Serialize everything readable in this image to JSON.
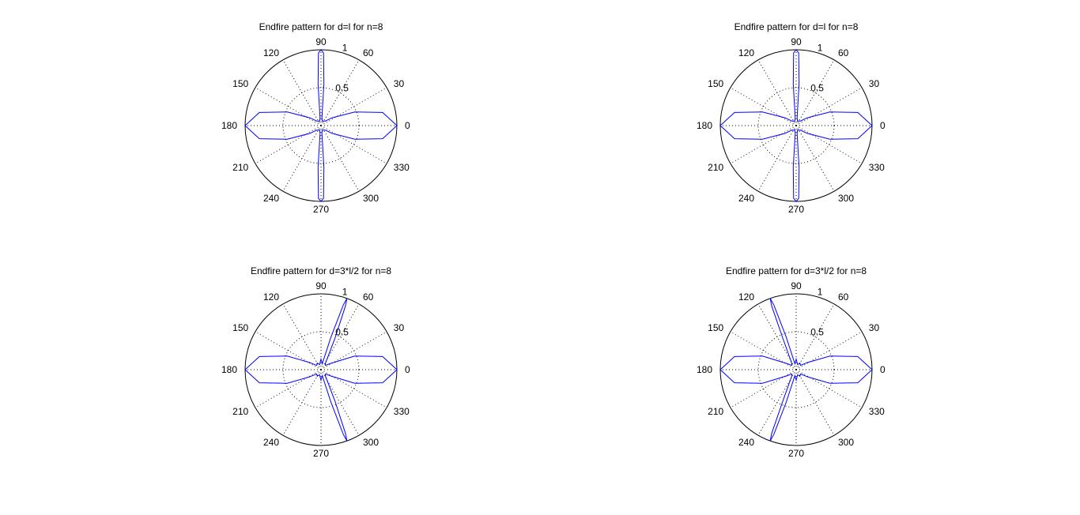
{
  "chart_data": [
    {
      "type": "polar",
      "title": "Endfire pattern for d=l for n=8",
      "theta_ticks": [
        "0",
        "30",
        "60",
        "90",
        "120",
        "150",
        "180",
        "210",
        "240",
        "270",
        "300",
        "330"
      ],
      "r_ticks": [
        "0.5",
        "1"
      ],
      "rlim": [
        0,
        1
      ],
      "grid": true,
      "series": [
        {
          "points": [
            [
              0,
              1.0
            ],
            [
              12,
              0.83
            ],
            [
              22,
              0.48
            ],
            [
              35,
              0.18
            ],
            [
              47,
              0.08
            ],
            [
              60,
              0.07
            ],
            [
              72,
              0.06
            ],
            [
              83,
              0.1
            ],
            [
              86,
              0.55
            ],
            [
              88,
              0.96
            ],
            [
              90,
              1.0
            ],
            [
              92,
              0.96
            ],
            [
              94,
              0.55
            ],
            [
              97,
              0.1
            ],
            [
              108,
              0.06
            ],
            [
              120,
              0.07
            ],
            [
              133,
              0.08
            ],
            [
              145,
              0.18
            ],
            [
              158,
              0.48
            ],
            [
              168,
              0.83
            ],
            [
              180,
              1.0
            ],
            [
              192,
              0.83
            ],
            [
              202,
              0.48
            ],
            [
              215,
              0.18
            ],
            [
              227,
              0.08
            ],
            [
              240,
              0.07
            ],
            [
              252,
              0.06
            ],
            [
              263,
              0.1
            ],
            [
              266,
              0.55
            ],
            [
              268,
              0.96
            ],
            [
              270,
              1.0
            ],
            [
              272,
              0.96
            ],
            [
              274,
              0.55
            ],
            [
              277,
              0.1
            ],
            [
              288,
              0.06
            ],
            [
              300,
              0.07
            ],
            [
              313,
              0.08
            ],
            [
              325,
              0.18
            ],
            [
              338,
              0.48
            ],
            [
              348,
              0.83
            ],
            [
              360,
              1.0
            ]
          ]
        }
      ]
    },
    {
      "type": "polar",
      "title": "Endfire pattern for d=l for n=8",
      "theta_ticks": [
        "0",
        "30",
        "60",
        "90",
        "120",
        "150",
        "180",
        "210",
        "240",
        "270",
        "300",
        "330"
      ],
      "r_ticks": [
        "0.5",
        "1"
      ],
      "rlim": [
        0,
        1
      ],
      "grid": true,
      "series": [
        {
          "points": [
            [
              0,
              1.0
            ],
            [
              12,
              0.83
            ],
            [
              22,
              0.48
            ],
            [
              35,
              0.18
            ],
            [
              47,
              0.08
            ],
            [
              60,
              0.07
            ],
            [
              72,
              0.06
            ],
            [
              83,
              0.1
            ],
            [
              86,
              0.55
            ],
            [
              88,
              0.96
            ],
            [
              90,
              1.0
            ],
            [
              92,
              0.96
            ],
            [
              94,
              0.55
            ],
            [
              97,
              0.1
            ],
            [
              108,
              0.06
            ],
            [
              120,
              0.07
            ],
            [
              133,
              0.08
            ],
            [
              145,
              0.18
            ],
            [
              158,
              0.48
            ],
            [
              168,
              0.83
            ],
            [
              180,
              1.0
            ],
            [
              192,
              0.83
            ],
            [
              202,
              0.48
            ],
            [
              215,
              0.18
            ],
            [
              227,
              0.08
            ],
            [
              240,
              0.07
            ],
            [
              252,
              0.06
            ],
            [
              263,
              0.1
            ],
            [
              266,
              0.55
            ],
            [
              268,
              0.96
            ],
            [
              270,
              1.0
            ],
            [
              272,
              0.96
            ],
            [
              274,
              0.55
            ],
            [
              277,
              0.1
            ],
            [
              288,
              0.06
            ],
            [
              300,
              0.07
            ],
            [
              313,
              0.08
            ],
            [
              325,
              0.18
            ],
            [
              338,
              0.48
            ],
            [
              348,
              0.83
            ],
            [
              360,
              1.0
            ]
          ]
        }
      ]
    },
    {
      "type": "polar",
      "title": "Endfire pattern for d=3*l/2 for n=8",
      "theta_ticks": [
        "0",
        "30",
        "60",
        "90",
        "120",
        "150",
        "180",
        "210",
        "240",
        "270",
        "300",
        "330"
      ],
      "r_ticks": [
        "0.5",
        "1"
      ],
      "rlim": [
        0,
        1
      ],
      "grid": true,
      "series": [
        {
          "points": [
            [
              0,
              1.0
            ],
            [
              12,
              0.83
            ],
            [
              22,
              0.48
            ],
            [
              33,
              0.15
            ],
            [
              45,
              0.08
            ],
            [
              55,
              0.1
            ],
            [
              66,
              0.45
            ],
            [
              69,
              0.9
            ],
            [
              70,
              1.0
            ],
            [
              71,
              0.9
            ],
            [
              73,
              0.45
            ],
            [
              78,
              0.08
            ],
            [
              90,
              0.14
            ],
            [
              105,
              0.07
            ],
            [
              120,
              0.1
            ],
            [
              135,
              0.08
            ],
            [
              148,
              0.18
            ],
            [
              158,
              0.48
            ],
            [
              168,
              0.83
            ],
            [
              180,
              1.0
            ],
            [
              192,
              0.83
            ],
            [
              202,
              0.48
            ],
            [
              212,
              0.18
            ],
            [
              225,
              0.08
            ],
            [
              240,
              0.1
            ],
            [
              255,
              0.07
            ],
            [
              270,
              0.14
            ],
            [
              282,
              0.08
            ],
            [
              287,
              0.45
            ],
            [
              289,
              0.9
            ],
            [
              290,
              1.0
            ],
            [
              291,
              0.9
            ],
            [
              294,
              0.45
            ],
            [
              305,
              0.1
            ],
            [
              315,
              0.08
            ],
            [
              327,
              0.15
            ],
            [
              338,
              0.48
            ],
            [
              348,
              0.83
            ],
            [
              360,
              1.0
            ]
          ]
        }
      ]
    },
    {
      "type": "polar",
      "title": "Endfire pattern for d=3*l/2 for n=8",
      "theta_ticks": [
        "0",
        "30",
        "60",
        "90",
        "120",
        "150",
        "180",
        "210",
        "240",
        "270",
        "300",
        "330"
      ],
      "r_ticks": [
        "0.5",
        "1"
      ],
      "rlim": [
        0,
        1
      ],
      "grid": true,
      "series": [
        {
          "points": [
            [
              0,
              1.0
            ],
            [
              12,
              0.83
            ],
            [
              22,
              0.48
            ],
            [
              32,
              0.18
            ],
            [
              45,
              0.08
            ],
            [
              60,
              0.1
            ],
            [
              75,
              0.07
            ],
            [
              90,
              0.14
            ],
            [
              102,
              0.08
            ],
            [
              107,
              0.45
            ],
            [
              109,
              0.9
            ],
            [
              110,
              1.0
            ],
            [
              111,
              0.9
            ],
            [
              113,
              0.45
            ],
            [
              125,
              0.1
            ],
            [
              135,
              0.08
            ],
            [
              147,
              0.15
            ],
            [
              158,
              0.48
            ],
            [
              168,
              0.83
            ],
            [
              180,
              1.0
            ],
            [
              192,
              0.83
            ],
            [
              202,
              0.48
            ],
            [
              213,
              0.15
            ],
            [
              225,
              0.08
            ],
            [
              235,
              0.1
            ],
            [
              247,
              0.45
            ],
            [
              249,
              0.9
            ],
            [
              250,
              1.0
            ],
            [
              251,
              0.9
            ],
            [
              253,
              0.45
            ],
            [
              258,
              0.08
            ],
            [
              270,
              0.14
            ],
            [
              285,
              0.07
            ],
            [
              300,
              0.1
            ],
            [
              315,
              0.08
            ],
            [
              328,
              0.18
            ],
            [
              338,
              0.48
            ],
            [
              348,
              0.83
            ],
            [
              360,
              1.0
            ]
          ]
        }
      ]
    }
  ]
}
